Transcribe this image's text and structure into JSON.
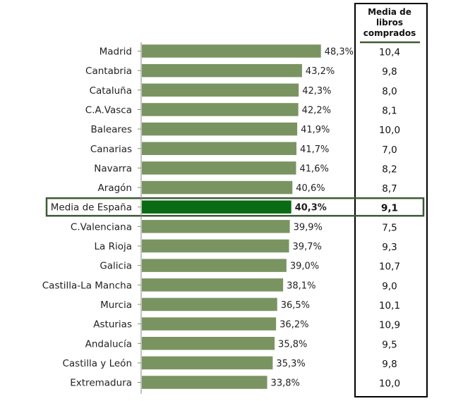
{
  "chart_data": {
    "type": "bar",
    "orientation": "horizontal",
    "categories": [
      "Madrid",
      "Cantabria",
      "Cataluña",
      "C.A.Vasca",
      "Baleares",
      "Canarias",
      "Navarra",
      "Aragón",
      "Media de España",
      "C.Valenciana",
      "La Rioja",
      "Galicia",
      "Castilla-La Mancha",
      "Murcia",
      "Asturias",
      "Andalucía",
      "Castilla y León",
      "Extremadura"
    ],
    "values": [
      48.3,
      43.2,
      42.3,
      42.2,
      41.9,
      41.7,
      41.6,
      40.6,
      40.3,
      39.9,
      39.7,
      39.0,
      38.1,
      36.5,
      36.2,
      35.8,
      35.3,
      33.8
    ],
    "value_labels": [
      "48,3%",
      "43,2%",
      "42,3%",
      "42,2%",
      "41,9%",
      "41,7%",
      "41,6%",
      "40,6%",
      "40,3%",
      "39,9%",
      "39,7%",
      "39,0%",
      "38,1%",
      "36,5%",
      "36,2%",
      "35,8%",
      "35,3%",
      "33,8%"
    ],
    "highlight_category": "Media de España",
    "table_column": {
      "header": [
        "Media de",
        "libros",
        "comprados"
      ],
      "values": [
        "10,4",
        "9,8",
        "8,0",
        "8,1",
        "10,0",
        "7,0",
        "8,2",
        "8,7",
        "9,1",
        "7,5",
        "9,3",
        "10,7",
        "9,0",
        "10,1",
        "10,9",
        "9,5",
        "9,8",
        "10,0"
      ]
    },
    "colors": {
      "bar": "#7a9461",
      "highlight_bar": "#0a6b14",
      "highlight_border": "#3f5a36",
      "axis": "#888888"
    },
    "grid": false,
    "legend": "none"
  }
}
